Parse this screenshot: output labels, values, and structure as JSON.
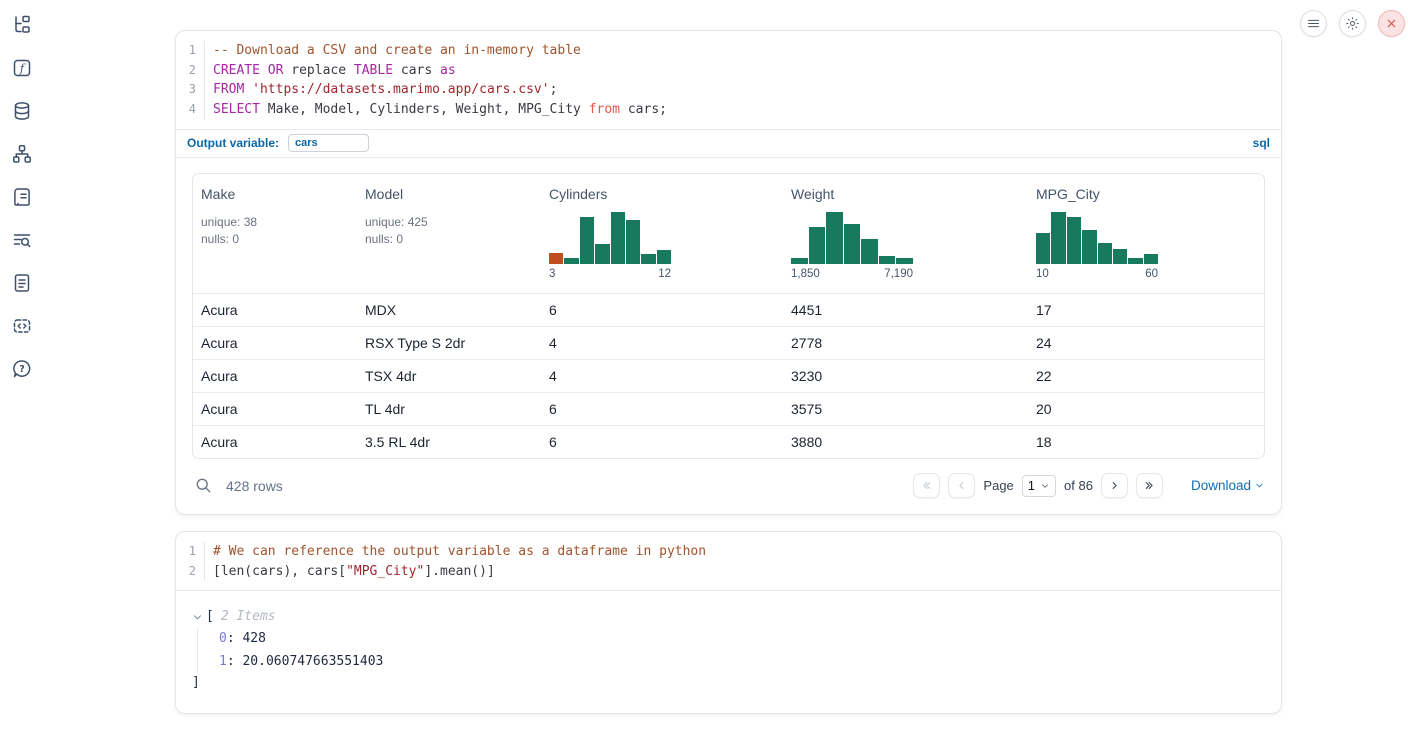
{
  "colors": {
    "histogram_bar": "#17795E",
    "histogram_highlight": "#BF4D1E",
    "accent_blue": "#0B68A6"
  },
  "sidebar": {
    "icons": [
      "file-tree",
      "functions",
      "datasources",
      "dependency-graph",
      "scratchpad",
      "logs",
      "documentation",
      "snippets",
      "help"
    ]
  },
  "topbar": {
    "buttons": [
      "menu",
      "settings",
      "shutdown"
    ]
  },
  "sql_cell": {
    "lines": [
      {
        "num": "1",
        "tokens": [
          {
            "text": "-- Download a CSV and create an in-memory table"
          }
        ]
      },
      {
        "num": "2",
        "tokens": [
          {
            "text": "CREATE OR"
          },
          {
            "text": " replace "
          },
          {
            "text": "TABLE"
          },
          {
            "text": " cars "
          },
          {
            "text": "as"
          }
        ]
      },
      {
        "num": "3",
        "tokens": [
          {
            "text": "FROM"
          },
          {
            "text": " "
          },
          {
            "text": "'https://datasets.marimo.app/cars.csv'"
          },
          {
            "text": ";"
          }
        ]
      },
      {
        "num": "4",
        "tokens": [
          {
            "text": "SELECT"
          },
          {
            "text": " Make, Model, Cylinders, Weight, MPG_City "
          },
          {
            "text": "from"
          },
          {
            "text": " cars;"
          }
        ]
      }
    ],
    "output_variable_label": "Output variable:",
    "output_variable_value": "cars",
    "language": "sql"
  },
  "table": {
    "columns": [
      {
        "name": "Make",
        "stats": [
          "unique: 38",
          "nulls: 0"
        ]
      },
      {
        "name": "Model",
        "stats": [
          "unique: 425",
          "nulls: 0"
        ]
      },
      {
        "name": "Cylinders",
        "histogram": {
          "min_label": "3",
          "max_label": "12",
          "values": [
            0.21,
            0.11,
            0.9,
            0.39,
            1.0,
            0.85,
            0.2,
            0.27
          ],
          "bar_color": "#17795E",
          "first_bar_color": "#BF4D1E"
        }
      },
      {
        "name": "Weight",
        "histogram": {
          "min_label": "1,850",
          "max_label": "7,190",
          "values": [
            0.12,
            0.72,
            1.0,
            0.76,
            0.49,
            0.16,
            0.11
          ],
          "bar_color": "#17795E"
        }
      },
      {
        "name": "MPG_City",
        "histogram": {
          "min_label": "10",
          "max_label": "60",
          "values": [
            0.6,
            1.0,
            0.9,
            0.66,
            0.4,
            0.29,
            0.12,
            0.2
          ],
          "bar_color": "#17795E"
        }
      }
    ],
    "rows": [
      [
        "Acura",
        "MDX",
        "6",
        "4451",
        "17"
      ],
      [
        "Acura",
        "RSX Type S 2dr",
        "4",
        "2778",
        "24"
      ],
      [
        "Acura",
        "TSX 4dr",
        "4",
        "3230",
        "22"
      ],
      [
        "Acura",
        "TL 4dr",
        "6",
        "3575",
        "20"
      ],
      [
        "Acura",
        "3.5 RL 4dr",
        "6",
        "3880",
        "18"
      ]
    ],
    "footer": {
      "row_count": "428 rows",
      "page_label": "Page",
      "page_value": "1",
      "of_label": "of 86",
      "download_label": "Download"
    }
  },
  "python_cell": {
    "lines": [
      {
        "num": "1",
        "tokens": [
          {
            "text": "# We can reference the output variable as a dataframe in python"
          }
        ]
      },
      {
        "num": "2",
        "tokens": [
          {
            "text": "[len(cars), cars["
          },
          {
            "text": "\"MPG_City\""
          },
          {
            "text": "].mean()]"
          }
        ]
      }
    ]
  },
  "result_list": {
    "open_bracket": "[",
    "items_label": "2 Items",
    "separator": ":",
    "items": [
      {
        "key": "0",
        "value": "428"
      },
      {
        "key": "1",
        "value": "20.060747663551403"
      }
    ],
    "close_bracket": "]"
  }
}
